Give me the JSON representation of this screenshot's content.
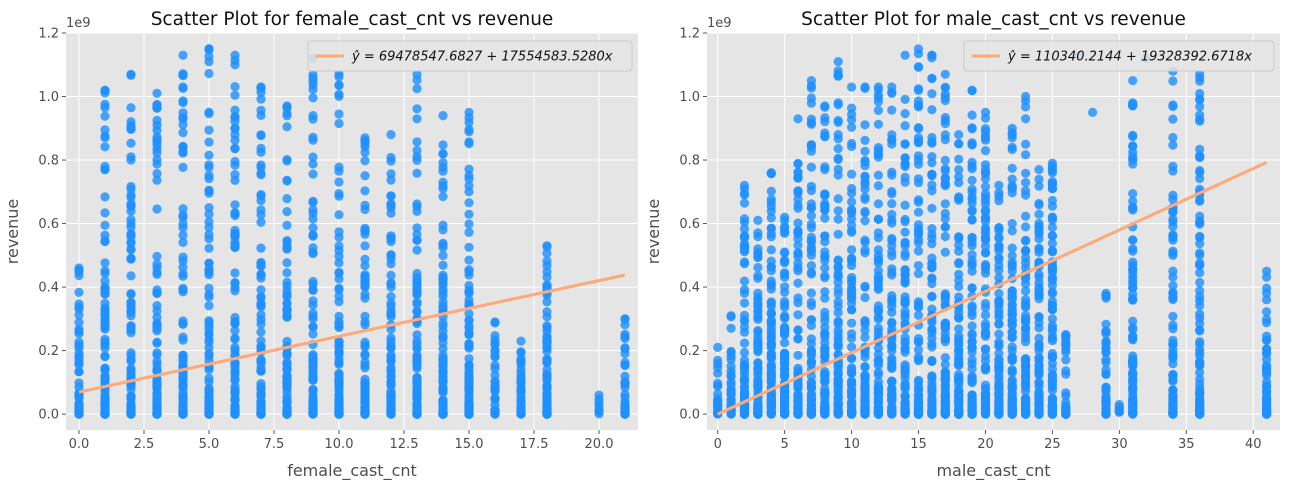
{
  "chart_data": [
    {
      "type": "scatter",
      "title": "Scatter Plot for female_cast_cnt vs revenue",
      "xlabel": "female_cast_cnt",
      "ylabel": "revenue",
      "y_offset_text": "1e9",
      "xlim": [
        -0.5,
        21.5
      ],
      "ylim": [
        -0.05,
        1.2
      ],
      "y_scale_note": "values in units of 1e9",
      "x_ticks": [
        0,
        2.5,
        5,
        7.5,
        10,
        12.5,
        15,
        17.5,
        20
      ],
      "x_tick_labels": [
        "0.0",
        "2.5",
        "5.0",
        "7.5",
        "10.0",
        "12.5",
        "15.0",
        "17.5",
        "20.0"
      ],
      "y_ticks": [
        0,
        0.2,
        0.4,
        0.6,
        0.8,
        1.0,
        1.2
      ],
      "y_tick_labels": [
        "0.0",
        "0.2",
        "0.4",
        "0.6",
        "0.8",
        "1.0",
        "1.2"
      ],
      "grid": true,
      "legend_position": "top-right",
      "series": [
        {
          "name": "ŷ = 69478547.6827 + 17554583.5280x",
          "kind": "regression_line",
          "intercept": 0.069478547,
          "slope": 0.01755458,
          "x_range": [
            0,
            21
          ]
        }
      ],
      "points_x": [
        0,
        1,
        2,
        3,
        4,
        5,
        6,
        7,
        8,
        9,
        10,
        11,
        12,
        13,
        14,
        15,
        16,
        17,
        18,
        20,
        21
      ],
      "points_max": [
        0.46,
        1.02,
        1.07,
        1.01,
        1.13,
        1.15,
        1.13,
        1.03,
        0.97,
        1.12,
        1.07,
        0.87,
        0.88,
        1.07,
        0.94,
        0.95,
        0.29,
        0.23,
        0.53,
        0.06,
        0.3
      ],
      "points_extra": [
        [
          12,
          0.65
        ],
        [
          12,
          0.37
        ],
        [
          12,
          0.34
        ],
        [
          12,
          0.24
        ],
        [
          12,
          0.14
        ],
        [
          12,
          0.13
        ],
        [
          12,
          0.1
        ],
        [
          12,
          0.05
        ],
        [
          12,
          0.04
        ],
        [
          13,
          0.93
        ],
        [
          13,
          0.83
        ],
        [
          13,
          0.42
        ],
        [
          13,
          0.3
        ],
        [
          13,
          0.22
        ],
        [
          13,
          0.18
        ],
        [
          13,
          0.11
        ],
        [
          14,
          0.82
        ],
        [
          14,
          0.71
        ],
        [
          14,
          0.58
        ],
        [
          14,
          0.13
        ],
        [
          14,
          0.01
        ],
        [
          15,
          0.74
        ],
        [
          15,
          0.7
        ],
        [
          15,
          0.38
        ],
        [
          15,
          0.25
        ],
        [
          16,
          0.22
        ],
        [
          16,
          0.18
        ],
        [
          17,
          0.14
        ],
        [
          17,
          0.04
        ],
        [
          17,
          0.03
        ]
      ]
    },
    {
      "type": "scatter",
      "title": "Scatter Plot for male_cast_cnt vs revenue",
      "xlabel": "male_cast_cnt",
      "ylabel": "revenue",
      "y_offset_text": "1e9",
      "xlim": [
        -0.8,
        42
      ],
      "ylim": [
        -0.05,
        1.2
      ],
      "y_scale_note": "values in units of 1e9",
      "x_ticks": [
        0,
        5,
        10,
        15,
        20,
        25,
        30,
        35,
        40
      ],
      "x_tick_labels": [
        "0",
        "5",
        "10",
        "15",
        "20",
        "25",
        "30",
        "35",
        "40"
      ],
      "y_ticks": [
        0,
        0.2,
        0.4,
        0.6,
        0.8,
        1.0,
        1.2
      ],
      "y_tick_labels": [
        "0.0",
        "0.2",
        "0.4",
        "0.6",
        "0.8",
        "1.0",
        "1.2"
      ],
      "grid": true,
      "legend_position": "top-right",
      "series": [
        {
          "name": "ŷ = 110340.2144 + 19328392.6718x",
          "kind": "regression_line",
          "intercept": 0.00011034,
          "slope": 0.019328392,
          "x_range": [
            0,
            41
          ]
        }
      ],
      "points_x": [
        0,
        1,
        2,
        3,
        4,
        5,
        6,
        7,
        8,
        9,
        10,
        11,
        12,
        13,
        14,
        15,
        16,
        17,
        18,
        19,
        20,
        21,
        22,
        23,
        24,
        25,
        26,
        29,
        30,
        31,
        34,
        36,
        41
      ],
      "points_max": [
        0.21,
        0.31,
        0.72,
        0.61,
        0.76,
        0.62,
        0.93,
        1.05,
        0.97,
        1.11,
        1.03,
        1.03,
        1.03,
        1.03,
        1.13,
        1.15,
        1.13,
        1.07,
        0.88,
        1.02,
        0.95,
        0.72,
        0.9,
        1.0,
        0.77,
        0.79,
        0.25,
        0.38,
        0.03,
        1.05,
        1.08,
        1.07,
        0.45
      ],
      "points_extra": [
        [
          21,
          0.53
        ],
        [
          21,
          0.41
        ],
        [
          21,
          0.17
        ],
        [
          21,
          0.09
        ],
        [
          21,
          0.06
        ],
        [
          22,
          0.84
        ],
        [
          22,
          0.74
        ],
        [
          22,
          0.6
        ],
        [
          22,
          0.47
        ],
        [
          22,
          0.37
        ],
        [
          22,
          0.2
        ],
        [
          22,
          0.14
        ],
        [
          23,
          0.93
        ],
        [
          23,
          0.35
        ],
        [
          23,
          0.3
        ],
        [
          24,
          0.47
        ],
        [
          24,
          0.13
        ],
        [
          24,
          0.06
        ],
        [
          25,
          0.71
        ],
        [
          25,
          0.43
        ],
        [
          25,
          0.27
        ],
        [
          25,
          0.18
        ],
        [
          25,
          0.16
        ],
        [
          25,
          0.02
        ],
        [
          28,
          0.95
        ],
        [
          32,
          1.12
        ],
        [
          27,
          1.13
        ]
      ]
    }
  ]
}
